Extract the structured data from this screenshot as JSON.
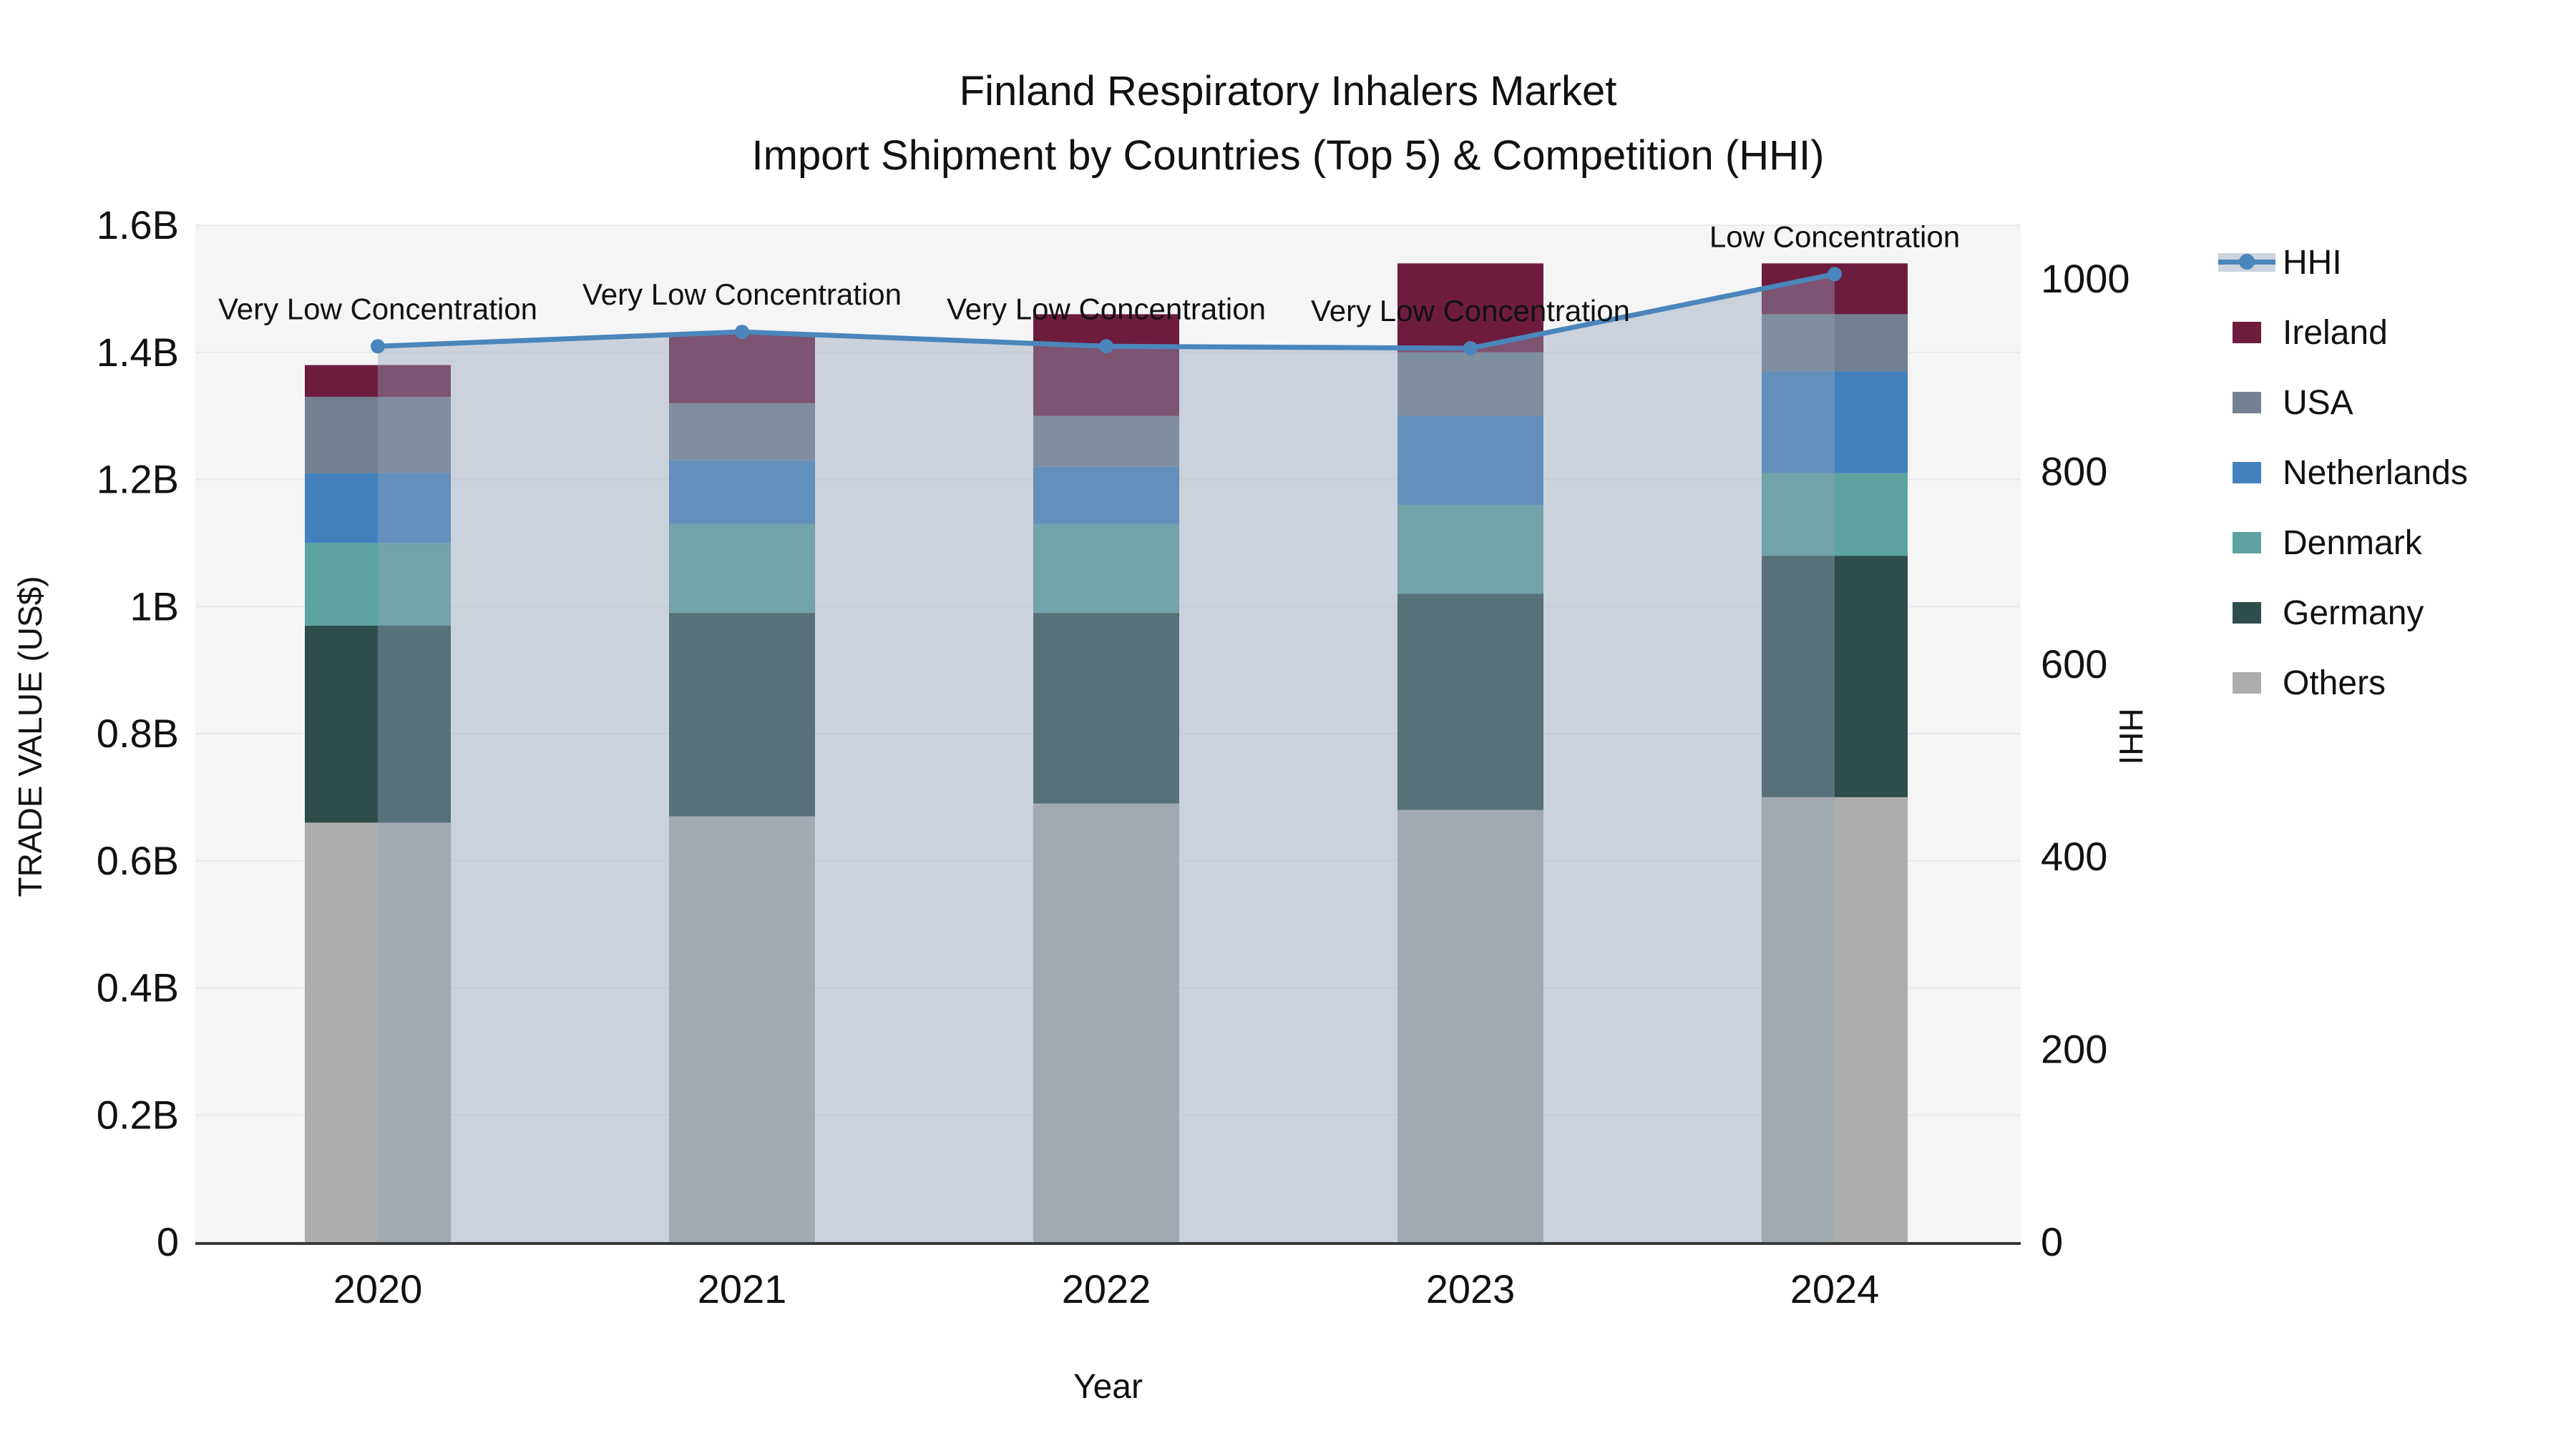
{
  "title": {
    "line1": "Finland Respiratory Inhalers Market",
    "line2": "Import Shipment by Countries (Top 5) & Competition (HHI)"
  },
  "chart_data": {
    "type": "combo-stacked-bar-line",
    "title": "Finland Respiratory Inhalers Market",
    "subtitle": "Import Shipment by Countries (Top 5) & Competition (HHI)",
    "categories": [
      "2020",
      "2021",
      "2022",
      "2023",
      "2024"
    ],
    "xlabel": "Year",
    "y_left": {
      "label": "TRADE VALUE (US$)",
      "unit": "billion US$",
      "ylim": [
        0,
        1.6
      ],
      "tick_values": [
        0,
        0.2,
        0.4,
        0.6,
        0.8,
        1.0,
        1.2,
        1.4,
        1.6
      ],
      "tick_labels": [
        "0",
        "0.2B",
        "0.4B",
        "0.6B",
        "0.8B",
        "1B",
        "1.2B",
        "1.4B",
        "1.6B"
      ]
    },
    "y_right": {
      "label": "HHI",
      "tick_values": [
        0,
        200,
        400,
        600,
        800,
        1000
      ],
      "tick_labels": [
        "0",
        "200",
        "400",
        "600",
        "800",
        "1000"
      ]
    },
    "stacked_series": [
      {
        "name": "Others",
        "color": "#ACAEAC",
        "values": [
          0.66,
          0.67,
          0.69,
          0.68,
          0.7
        ]
      },
      {
        "name": "Germany",
        "color": "#2E4E4B",
        "values": [
          0.31,
          0.32,
          0.3,
          0.34,
          0.38
        ]
      },
      {
        "name": "Denmark",
        "color": "#5CA3A0",
        "values": [
          0.13,
          0.14,
          0.14,
          0.14,
          0.13
        ]
      },
      {
        "name": "Netherlands",
        "color": "#4281BE",
        "values": [
          0.11,
          0.1,
          0.09,
          0.14,
          0.16
        ]
      },
      {
        "name": "USA",
        "color": "#72808F",
        "values": [
          0.12,
          0.09,
          0.08,
          0.1,
          0.09
        ]
      },
      {
        "name": "Ireland",
        "color": "#6E1C3E",
        "values": [
          0.05,
          0.11,
          0.16,
          0.14,
          0.08
        ]
      }
    ],
    "bar_totals": [
      1.38,
      1.43,
      1.46,
      1.54,
      1.54
    ],
    "line_series": {
      "name": "HHI",
      "color": "#4A86BC",
      "area_color": "rgba(146,161,184,0.42)",
      "values": [
        930,
        945,
        930,
        928,
        1005
      ]
    },
    "annotations": [
      "Very Low Concentration",
      "Very Low Concentration",
      "Very Low Concentration",
      "Very Low Concentration",
      "Low Concentration"
    ],
    "legend_position": "right",
    "grid": "horizontal"
  },
  "legend": {
    "items": [
      {
        "name": "HHI",
        "type": "line"
      },
      {
        "name": "Ireland",
        "type": "swatch",
        "color": "#6E1C3E"
      },
      {
        "name": "USA",
        "type": "swatch",
        "color": "#72808F"
      },
      {
        "name": "Netherlands",
        "type": "swatch",
        "color": "#4281BE"
      },
      {
        "name": "Denmark",
        "type": "swatch",
        "color": "#5CA3A0"
      },
      {
        "name": "Germany",
        "type": "swatch",
        "color": "#2E4E4B"
      },
      {
        "name": "Others",
        "type": "swatch",
        "color": "#ACAEAC"
      }
    ]
  },
  "colors": {
    "plot_bg": "#F5F5F6",
    "gridline": "#E9E9EC",
    "axis_line": "#3A3A3A",
    "text": "#111111",
    "hhi_line": "#4A86BC",
    "hhi_area_flat": "#CDD3DD"
  }
}
